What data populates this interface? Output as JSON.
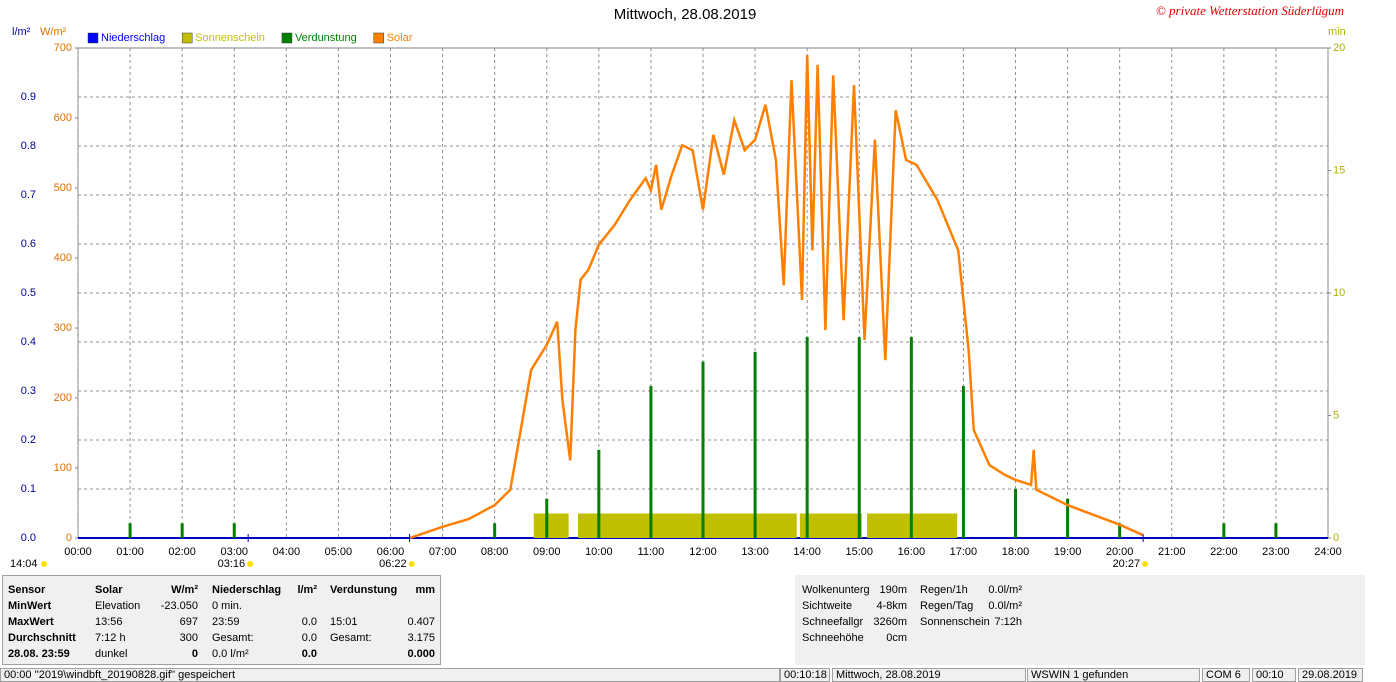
{
  "chart_data": {
    "type": "line",
    "title": "Mittwoch, 28.08.2019",
    "credit": "© private Wetterstation Süderlügum",
    "y_label": "l/m²",
    "y2_label": "W/m²",
    "y3_label": "min",
    "xlim": [
      0,
      24
    ],
    "xticks": [
      {
        "value": 0,
        "label": "00:00"
      },
      {
        "value": 1,
        "label": "01:00"
      },
      {
        "value": 2,
        "label": "02:00"
      },
      {
        "value": 3,
        "label": "03:00"
      },
      {
        "value": 4,
        "label": "04:00"
      },
      {
        "value": 5,
        "label": "05:00"
      },
      {
        "value": 6,
        "label": "06:00"
      },
      {
        "value": 7,
        "label": "07:00"
      },
      {
        "value": 8,
        "label": "08:00"
      },
      {
        "value": 9,
        "label": "09:00"
      },
      {
        "value": 10,
        "label": "10:00"
      },
      {
        "value": 11,
        "label": "11:00"
      },
      {
        "value": 12,
        "label": "12:00"
      },
      {
        "value": 13,
        "label": "13:00"
      },
      {
        "value": 14,
        "label": "14:00"
      },
      {
        "value": 15,
        "label": "15:00"
      },
      {
        "value": 16,
        "label": "16:00"
      },
      {
        "value": 17,
        "label": "17:00"
      },
      {
        "value": 18,
        "label": "18:00"
      },
      {
        "value": 19,
        "label": "19:00"
      },
      {
        "value": 20,
        "label": "20:00"
      },
      {
        "value": 21,
        "label": "21:00"
      },
      {
        "value": 22,
        "label": "22:00"
      },
      {
        "value": 23,
        "label": "23:00"
      },
      {
        "value": 24,
        "label": "24:00"
      }
    ],
    "ylim": [
      0,
      1
    ],
    "yticks": [
      {
        "value": 0,
        "label": "0.0"
      },
      0.1,
      0.2,
      0.3,
      0.4,
      0.5,
      0.6,
      0.7,
      0.8,
      0.9
    ],
    "y2lim": [
      0,
      700
    ],
    "y2ticks": [
      0,
      100,
      200,
      300,
      400,
      500,
      600,
      700
    ],
    "y3lim": [
      0,
      20
    ],
    "y3ticks": [
      0,
      5,
      10,
      15,
      20
    ],
    "grid": true,
    "series": [
      {
        "name": "Niederschlag",
        "color": "#0000ff",
        "type": "bar",
        "axis": "y",
        "x": [],
        "values": []
      },
      {
        "name": "Sonnenschein",
        "color": "#c0c000",
        "type": "span",
        "axis": "y3",
        "x": [
          8.75,
          9.6,
          13.86,
          15.15
        ],
        "x_end": [
          9.42,
          13.8,
          15.05,
          16.88
        ],
        "values": [
          1,
          1,
          1,
          1
        ]
      },
      {
        "name": "Verdunstung",
        "color": "#008000",
        "type": "bar",
        "axis": "y",
        "x": [
          1,
          2,
          3,
          8,
          9,
          10,
          11,
          12,
          13,
          14,
          15,
          16,
          17,
          18,
          19,
          20,
          22,
          23
        ],
        "values": [
          0.03,
          0.03,
          0.03,
          0.03,
          0.08,
          0.18,
          0.31,
          0.36,
          0.38,
          0.41,
          0.41,
          0.41,
          0.31,
          0.1,
          0.08,
          0.03,
          0.03,
          0.03
        ]
      },
      {
        "name": "Solar",
        "color": "#ff8000",
        "type": "line",
        "axis": "y2",
        "x": [
          6.37,
          7.0,
          7.5,
          8.0,
          8.3,
          8.5,
          8.7,
          9.0,
          9.2,
          9.3,
          9.45,
          9.55,
          9.65,
          9.8,
          10.0,
          10.3,
          10.6,
          10.9,
          11.0,
          11.1,
          11.2,
          11.4,
          11.6,
          11.8,
          12.0,
          12.2,
          12.4,
          12.6,
          12.8,
          13.0,
          13.2,
          13.4,
          13.55,
          13.7,
          13.9,
          14.0,
          14.1,
          14.2,
          14.35,
          14.5,
          14.7,
          14.9,
          15.1,
          15.3,
          15.5,
          15.7,
          15.9,
          16.1,
          16.5,
          16.9,
          17.1,
          17.2,
          17.5,
          17.8,
          18.0,
          18.3,
          18.35,
          18.4,
          19.0,
          19.5,
          20.0,
          20.45
        ],
        "values": [
          0,
          16,
          27,
          47,
          69,
          154,
          240,
          276,
          309,
          197,
          111,
          297,
          369,
          383,
          419,
          447,
          483,
          514,
          497,
          533,
          469,
          519,
          561,
          554,
          469,
          576,
          519,
          597,
          554,
          569,
          619,
          540,
          361,
          654,
          340,
          690,
          411,
          676,
          297,
          661,
          311,
          647,
          283,
          569,
          254,
          611,
          540,
          533,
          483,
          411,
          269,
          154,
          104,
          90,
          83,
          76,
          126,
          69,
          47,
          33,
          19,
          4
        ]
      }
    ],
    "annotations": [
      {
        "label": "03:16",
        "x": 3.267
      },
      {
        "label": "06:22",
        "x": 6.367
      },
      {
        "label": "20:27",
        "x": 20.45
      }
    ],
    "left_time": "14:04"
  },
  "panel": {
    "sensor": [
      "Sensor",
      "MinWert",
      "MaxWert",
      "Durchschnitt",
      "28.08. 23:59"
    ],
    "groups": [
      {
        "header": {
          "l": "Solar",
          "r": "W/m²"
        },
        "rows": [
          {
            "l": "Elevation",
            "r": "-23.050"
          },
          {
            "l": "13:56",
            "r": "697"
          },
          {
            "l": "7:12 h",
            "r": "300"
          },
          {
            "l": "dunkel",
            "r": "0"
          }
        ]
      },
      {
        "header": {
          "l": "Niederschlag",
          "r": "l/m²"
        },
        "rows": [
          {
            "l": "0 min."
          },
          {
            "l": "23:59",
            "r": "0.0"
          },
          {
            "l": "Gesamt:",
            "r": "0.0"
          },
          {
            "l": "0.0 l/m²",
            "r": "0.0"
          }
        ]
      },
      {
        "header": {
          "l": "Verdunstung",
          "r": "mm"
        },
        "rows": [
          {},
          {
            "l": "15:01",
            "r": "0.407"
          },
          {
            "l": "Gesamt:",
            "r": "3.175"
          },
          {
            "r": "0.000"
          }
        ]
      }
    ],
    "info": [
      [
        {
          "l": "Wolkenunterg",
          "r": "190m"
        },
        {
          "l": "Sichtweite",
          "r": "4-8km"
        },
        {
          "l": "Schneefallgr",
          "r": "3260m"
        },
        {
          "l": "Schneehöhe",
          "r": "0cm"
        }
      ],
      [
        {
          "l": "Regen/1h",
          "r": "0.0l/m²"
        },
        {
          "l": "Regen/Tag",
          "r": "0.0l/m²"
        },
        {
          "l": "Sonnenschein",
          "r": "7:12h"
        }
      ]
    ]
  },
  "status_bar": [
    "00:00  ''2019\\windbft_20190828.gif'' gespeichert",
    "00:10:18",
    "Mittwoch, 28.08.2019",
    "WSWIN 1 gefunden",
    "COM 6",
    "00:10",
    "29.08.2019"
  ]
}
